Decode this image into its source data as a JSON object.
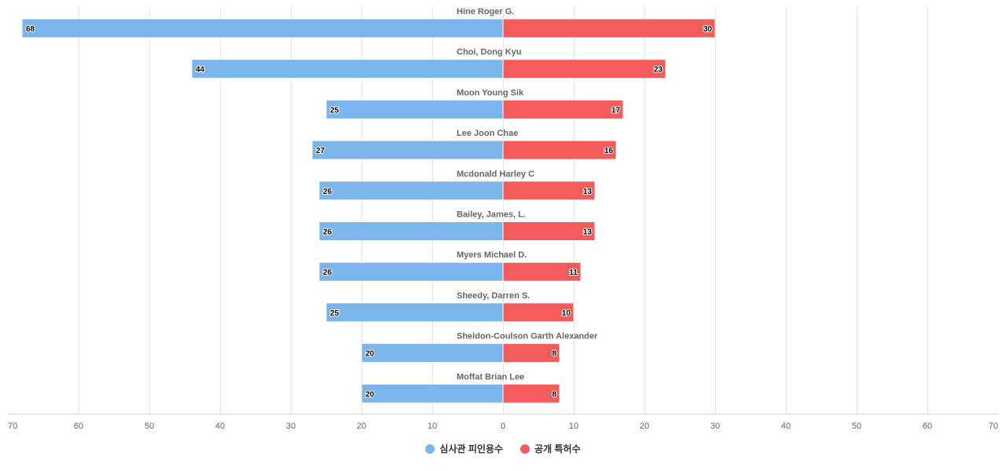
{
  "chart_data": {
    "type": "bar",
    "orientation": "horizontal",
    "layout": "butterfly",
    "categories": [
      "Hine Roger G.",
      "Choi, Dong Kyu",
      "Moon Young Sik",
      "Lee Joon Chae",
      "Mcdonald Harley C",
      "Bailey, James, L.",
      "Myers Michael D.",
      "Sheedy, Darren S.",
      "Sheldon-Coulson Garth Alexander",
      "Moffat Brian Lee"
    ],
    "series": [
      {
        "name": "심사관 피인용수",
        "color": "#7cb5ec",
        "direction": "left",
        "values": [
          68,
          44,
          25,
          27,
          26,
          26,
          26,
          25,
          20,
          20
        ]
      },
      {
        "name": "공개 특허수",
        "color": "#f45b5b",
        "direction": "right",
        "values": [
          30,
          23,
          17,
          16,
          13,
          13,
          11,
          10,
          8,
          8
        ]
      }
    ],
    "title": "",
    "xlabel": "",
    "ylabel": "",
    "xlim": [
      -70,
      70
    ],
    "tick_values": [
      -70,
      -60,
      -50,
      -40,
      -30,
      -20,
      -10,
      0,
      10,
      20,
      30,
      40,
      50,
      60,
      70
    ],
    "tick_labels": [
      "70",
      "60",
      "50",
      "40",
      "30",
      "20",
      "10",
      "0",
      "10",
      "20",
      "30",
      "40",
      "50",
      "60",
      "70"
    ],
    "grid": true,
    "legend_position": "bottom-center",
    "data_labels": true
  }
}
